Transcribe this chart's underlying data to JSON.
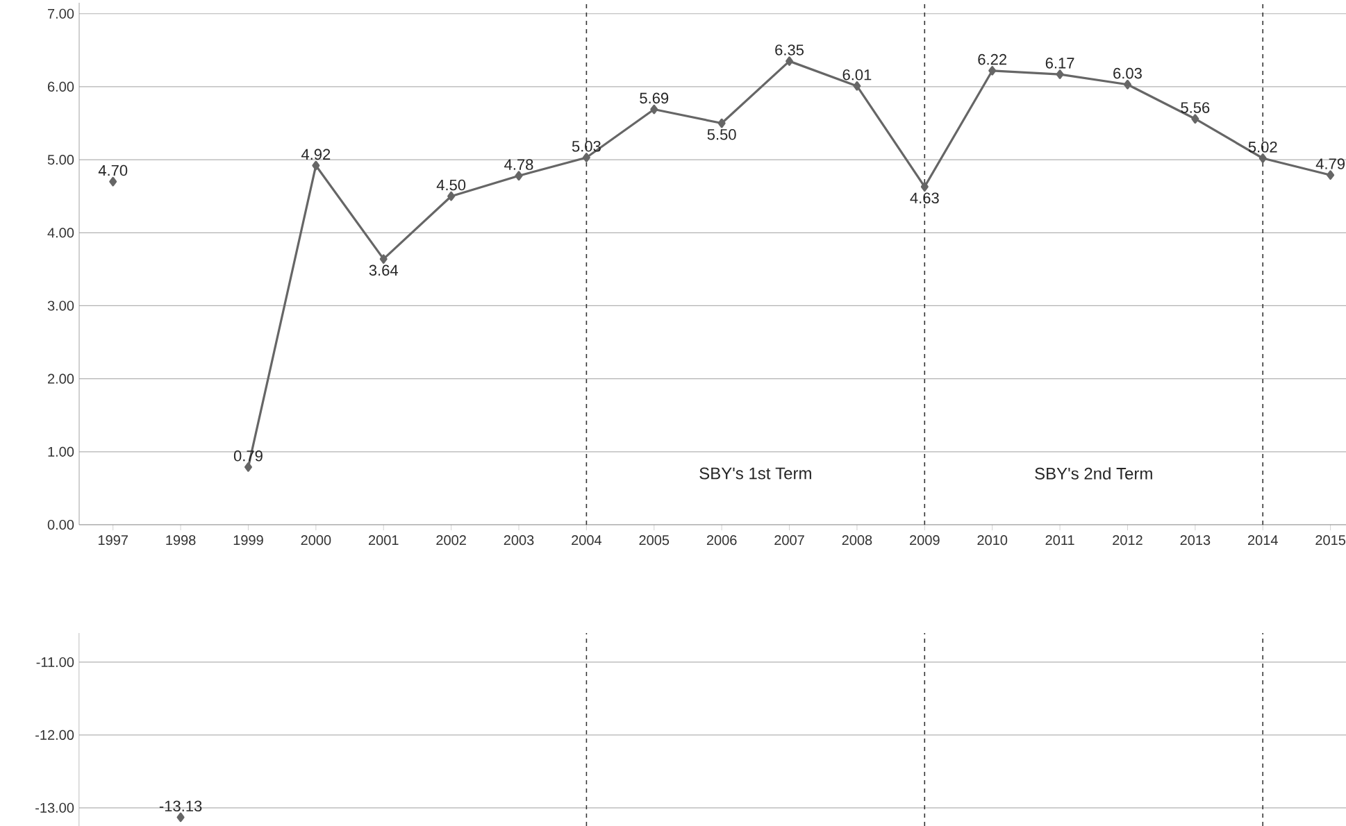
{
  "chart_data": [
    {
      "type": "line",
      "x": [
        1997,
        1998,
        1999,
        2000,
        2001,
        2002,
        2003,
        2004,
        2005,
        2006,
        2007,
        2008,
        2009,
        2010,
        2011,
        2012,
        2013,
        2014,
        2015
      ],
      "series": [
        {
          "color": "#666666",
          "values": [
            4.7,
            null,
            0.79,
            4.92,
            3.64,
            4.5,
            4.78,
            5.03,
            5.69,
            5.5,
            6.35,
            6.01,
            4.63,
            6.22,
            6.17,
            6.03,
            5.56,
            5.02,
            4.79
          ],
          "value_labels": [
            "4.70",
            null,
            "0.79",
            "4.92",
            "3.64",
            "4.50",
            "4.78",
            "5.03",
            "5.69",
            "5.50",
            "6.35",
            "6.01",
            "4.63",
            "6.22",
            "6.17",
            "6.03",
            "5.56",
            "5.02",
            "4.79"
          ]
        }
      ],
      "xlim": [
        1996.5,
        2015.23
      ],
      "xticks": [
        1997,
        1998,
        1999,
        2000,
        2001,
        2002,
        2003,
        2004,
        2005,
        2006,
        2007,
        2008,
        2009,
        2010,
        2011,
        2012,
        2013,
        2014,
        2015
      ],
      "ylim": [
        0,
        7.15
      ],
      "yticks": [
        {
          "value": 0,
          "label": "0.00"
        },
        {
          "value": 1,
          "label": "1.00"
        },
        {
          "value": 2,
          "label": "2.00"
        },
        {
          "value": 3,
          "label": "3.00"
        },
        {
          "value": 4,
          "label": "4.00"
        },
        {
          "value": 5,
          "label": "5.00"
        },
        {
          "value": 6,
          "label": "6.00"
        },
        {
          "value": 7,
          "label": "7.00"
        }
      ],
      "grid": "y",
      "marker": "diamond",
      "line_style": "solid",
      "ref_lines": [
        {
          "axis": "x",
          "value": 2004,
          "line_style": "dashed",
          "color": "#333333"
        },
        {
          "axis": "x",
          "value": 2009,
          "line_style": "dashed",
          "color": "#333333"
        },
        {
          "axis": "x",
          "value": 2014,
          "line_style": "dashed",
          "color": "#333333"
        }
      ],
      "annotations": [
        "SBY's 1st Term",
        "SBY's 2nd Term"
      ]
    },
    {
      "type": "line",
      "series": [
        {
          "color": "#666666",
          "x": [
            1998
          ],
          "values": [
            -13.13
          ],
          "value_labels": [
            "-13.13"
          ]
        }
      ],
      "xlim": [
        1996.5,
        2015.23
      ],
      "ylim": [
        -13.25,
        -10.6
      ],
      "yticks": [
        {
          "value": -11,
          "label": "-11.00"
        },
        {
          "value": -12,
          "label": "-12.00"
        },
        {
          "value": -13,
          "label": "-13.00"
        }
      ],
      "tick_labels": "y",
      "grid": "y",
      "marker": "diamond",
      "line_style": "solid",
      "ref_lines": [
        {
          "axis": "x",
          "value": 2004,
          "line_style": "dashed",
          "color": "#333333"
        },
        {
          "axis": "x",
          "value": 2009,
          "line_style": "dashed",
          "color": "#333333"
        },
        {
          "axis": "x",
          "value": 2014,
          "line_style": "dashed",
          "color": "#333333"
        }
      ]
    }
  ]
}
